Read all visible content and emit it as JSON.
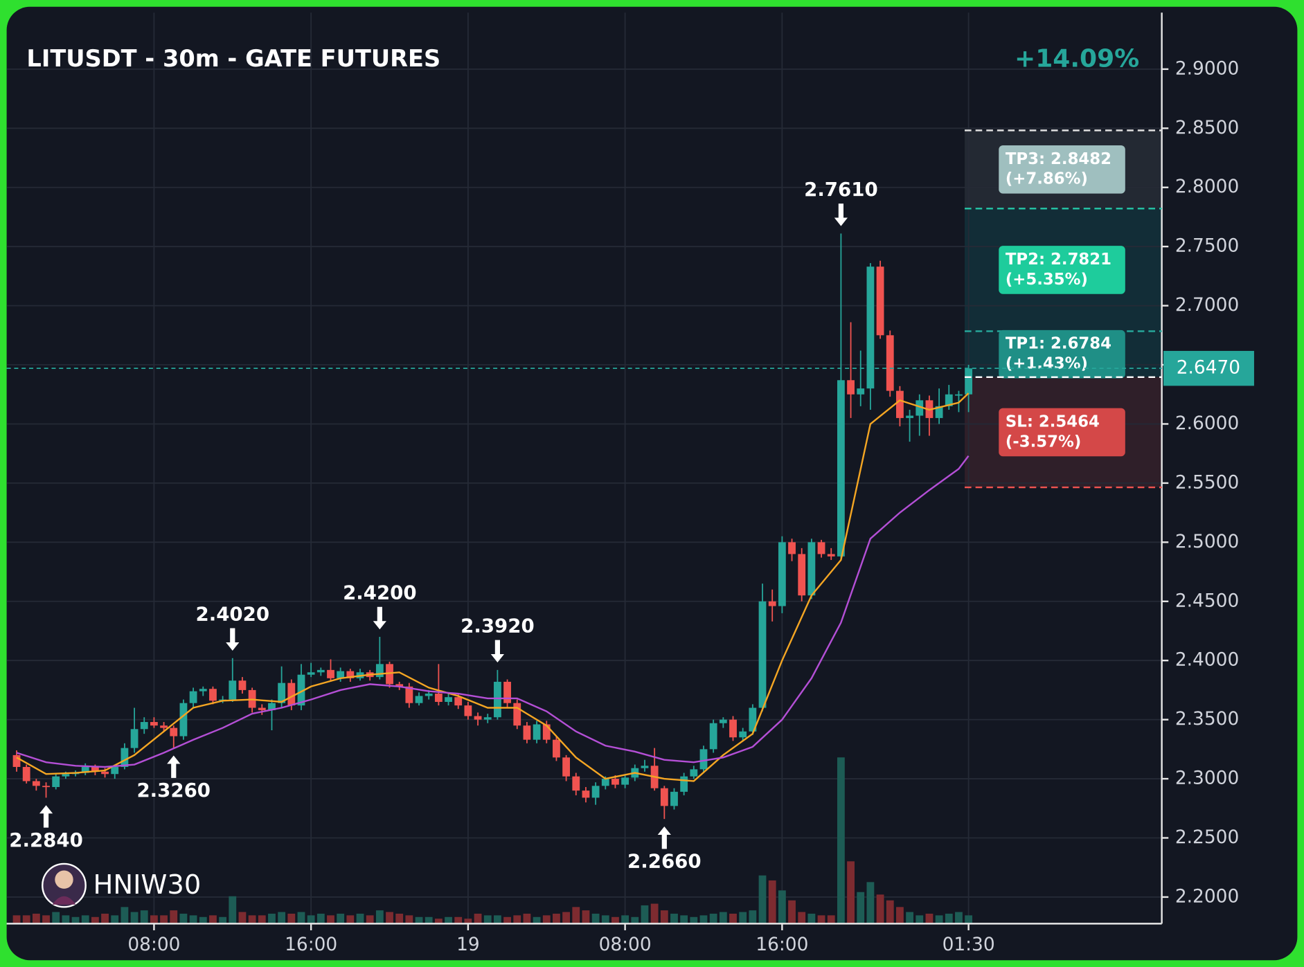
{
  "chart_data": {
    "type": "candlestick",
    "title": "LITUSDT - 30m - GATE FUTURES",
    "change": "+14.09%",
    "watermark": "HNIW30",
    "colors": {
      "up": "#26a69a",
      "down": "#f05350",
      "up_volume": "#1d5c55",
      "down_volume": "#7d2b30",
      "grid": "#252a36",
      "text": "#d1d4dc"
    },
    "grid": true,
    "xlim": [
      -1.017,
      116.69
    ],
    "xticks": [
      {
        "value": 14,
        "label": "08:00"
      },
      {
        "value": 30,
        "label": "16:00"
      },
      {
        "value": 46,
        "label": "19"
      },
      {
        "value": 62,
        "label": "08:00"
      },
      {
        "value": 78,
        "label": "16:00"
      },
      {
        "value": 97,
        "label": "01:30"
      }
    ],
    "ylim": [
      2.1775,
      2.9478
    ],
    "yticks": [
      {
        "value": 2.2,
        "label": "2.2000"
      },
      {
        "value": 2.25,
        "label": "2.2500"
      },
      {
        "value": 2.3,
        "label": "2.3000"
      },
      {
        "value": 2.35,
        "label": "2.3500"
      },
      {
        "value": 2.4,
        "label": "2.4000"
      },
      {
        "value": 2.45,
        "label": "2.4500"
      },
      {
        "value": 2.5,
        "label": "2.5000"
      },
      {
        "value": 2.55,
        "label": "2.5500"
      },
      {
        "value": 2.6,
        "label": "2.6000"
      },
      {
        "value": 2.65,
        "label": "2.6500"
      },
      {
        "value": 2.7,
        "label": "2.7000"
      },
      {
        "value": 2.75,
        "label": "2.7500"
      },
      {
        "value": 2.8,
        "label": "2.8000"
      },
      {
        "value": 2.85,
        "label": "2.8500"
      },
      {
        "value": 2.9,
        "label": "2.9000"
      }
    ],
    "candles": {
      "open": [
        2.32,
        2.31,
        2.298,
        2.294,
        2.293,
        2.302,
        2.304,
        2.305,
        2.31,
        2.306,
        2.304,
        2.31,
        2.326,
        2.342,
        2.348,
        2.345,
        2.343,
        2.336,
        2.364,
        2.374,
        2.376,
        2.366,
        2.367,
        2.383,
        2.375,
        2.36,
        2.358,
        2.364,
        2.381,
        2.362,
        2.388,
        2.39,
        2.392,
        2.385,
        2.391,
        2.385,
        2.39,
        2.386,
        2.397,
        2.38,
        2.378,
        2.364,
        2.37,
        2.372,
        2.365,
        2.369,
        2.362,
        2.353,
        2.35,
        2.352,
        2.382,
        2.364,
        2.345,
        2.333,
        2.346,
        2.333,
        2.318,
        2.302,
        2.29,
        2.284,
        2.294,
        2.3,
        2.295,
        2.301,
        2.309,
        2.311,
        2.292,
        2.277,
        2.289,
        2.302,
        2.308,
        2.325,
        2.347,
        2.35,
        2.335,
        2.34,
        2.36,
        2.45,
        2.446,
        2.5,
        2.49,
        2.455,
        2.5,
        2.49,
        2.488,
        2.637,
        2.625,
        2.63,
        2.733,
        2.675,
        2.628,
        2.605,
        2.607,
        2.62,
        2.605,
        2.615,
        2.625,
        2.625
      ],
      "high": [
        2.324,
        2.312,
        2.3,
        2.297,
        2.304,
        2.306,
        2.307,
        2.313,
        2.312,
        2.309,
        2.312,
        2.33,
        2.36,
        2.352,
        2.352,
        2.348,
        2.345,
        2.367,
        2.377,
        2.378,
        2.378,
        2.37,
        2.402,
        2.386,
        2.377,
        2.363,
        2.367,
        2.395,
        2.384,
        2.397,
        2.398,
        2.394,
        2.401,
        2.394,
        2.393,
        2.393,
        2.392,
        2.42,
        2.399,
        2.382,
        2.381,
        2.373,
        2.375,
        2.397,
        2.372,
        2.372,
        2.365,
        2.356,
        2.355,
        2.392,
        2.384,
        2.367,
        2.348,
        2.349,
        2.349,
        2.336,
        2.32,
        2.305,
        2.293,
        2.297,
        2.302,
        2.303,
        2.303,
        2.312,
        2.316,
        2.326,
        2.294,
        2.292,
        2.305,
        2.311,
        2.328,
        2.35,
        2.352,
        2.353,
        2.343,
        2.363,
        2.465,
        2.46,
        2.505,
        2.503,
        2.495,
        2.503,
        2.502,
        2.495,
        2.761,
        2.686,
        2.662,
        2.736,
        2.738,
        2.679,
        2.632,
        2.612,
        2.625,
        2.624,
        2.63,
        2.633,
        2.628,
        2.65
      ],
      "low": [
        2.306,
        2.296,
        2.29,
        2.284,
        2.291,
        2.3,
        2.302,
        2.303,
        2.303,
        2.301,
        2.3,
        2.308,
        2.322,
        2.338,
        2.343,
        2.34,
        2.326,
        2.333,
        2.36,
        2.37,
        2.363,
        2.364,
        2.365,
        2.372,
        2.356,
        2.354,
        2.341,
        2.36,
        2.358,
        2.358,
        2.386,
        2.387,
        2.382,
        2.382,
        2.382,
        2.383,
        2.383,
        2.384,
        2.377,
        2.375,
        2.36,
        2.362,
        2.367,
        2.362,
        2.362,
        2.359,
        2.35,
        2.345,
        2.347,
        2.35,
        2.36,
        2.342,
        2.33,
        2.33,
        2.33,
        2.315,
        2.298,
        2.286,
        2.28,
        2.278,
        2.291,
        2.292,
        2.292,
        2.298,
        2.306,
        2.29,
        2.266,
        2.274,
        2.286,
        2.3,
        2.305,
        2.322,
        2.343,
        2.332,
        2.332,
        2.337,
        2.357,
        2.433,
        2.44,
        2.484,
        2.45,
        2.452,
        2.487,
        2.485,
        2.486,
        2.605,
        2.615,
        2.612,
        2.672,
        2.623,
        2.598,
        2.585,
        2.59,
        2.59,
        2.6,
        2.612,
        2.61,
        2.61
      ],
      "close": [
        2.31,
        2.298,
        2.294,
        2.293,
        2.302,
        2.304,
        2.305,
        2.31,
        2.306,
        2.304,
        2.31,
        2.326,
        2.342,
        2.348,
        2.345,
        2.343,
        2.336,
        2.364,
        2.374,
        2.376,
        2.366,
        2.367,
        2.383,
        2.375,
        2.36,
        2.358,
        2.364,
        2.381,
        2.362,
        2.388,
        2.39,
        2.392,
        2.385,
        2.391,
        2.385,
        2.39,
        2.386,
        2.397,
        2.38,
        2.378,
        2.364,
        2.37,
        2.372,
        2.365,
        2.369,
        2.362,
        2.353,
        2.35,
        2.352,
        2.382,
        2.364,
        2.345,
        2.333,
        2.346,
        2.333,
        2.318,
        2.302,
        2.29,
        2.284,
        2.294,
        2.3,
        2.295,
        2.301,
        2.309,
        2.311,
        2.292,
        2.277,
        2.289,
        2.302,
        2.308,
        2.325,
        2.347,
        2.35,
        2.335,
        2.34,
        2.36,
        2.45,
        2.446,
        2.5,
        2.49,
        2.455,
        2.5,
        2.49,
        2.488,
        2.637,
        2.625,
        2.63,
        2.733,
        2.675,
        2.628,
        2.605,
        2.607,
        2.62,
        2.605,
        2.615,
        2.625,
        2.625,
        2.647
      ],
      "volume": [
        10,
        10,
        12,
        10,
        14,
        10,
        8,
        10,
        8,
        12,
        10,
        20,
        14,
        16,
        10,
        10,
        16,
        12,
        10,
        8,
        10,
        8,
        33,
        14,
        10,
        10,
        12,
        14,
        12,
        14,
        10,
        12,
        10,
        12,
        10,
        12,
        10,
        16,
        14,
        12,
        10,
        8,
        8,
        6,
        8,
        8,
        6,
        12,
        10,
        10,
        8,
        10,
        12,
        8,
        10,
        12,
        14,
        20,
        16,
        12,
        10,
        8,
        10,
        8,
        22,
        24,
        16,
        12,
        10,
        8,
        10,
        12,
        14,
        12,
        14,
        16,
        58,
        52,
        40,
        28,
        14,
        12,
        10,
        10,
        200,
        75,
        38,
        50,
        35,
        28,
        20,
        14,
        10,
        12,
        10,
        12,
        14,
        10
      ]
    },
    "volume_lim": [
      0,
      250
    ],
    "moving_averages": [
      {
        "color": "#f5a623",
        "x": [
          0,
          3,
          6,
          9,
          12,
          15,
          18,
          21,
          24,
          27,
          30,
          33,
          36,
          39,
          42,
          45,
          48,
          51,
          54,
          57,
          60,
          63,
          66,
          69,
          72,
          75,
          78,
          81,
          84,
          87,
          90,
          93,
          96,
          97
        ],
        "values": [
          2.318,
          2.304,
          2.305,
          2.307,
          2.32,
          2.34,
          2.36,
          2.366,
          2.367,
          2.365,
          2.378,
          2.385,
          2.388,
          2.39,
          2.377,
          2.37,
          2.36,
          2.36,
          2.345,
          2.318,
          2.3,
          2.305,
          2.3,
          2.298,
          2.32,
          2.338,
          2.4,
          2.455,
          2.485,
          2.6,
          2.62,
          2.612,
          2.618,
          2.626
        ]
      },
      {
        "color": "#b44fd6",
        "x": [
          0,
          3,
          6,
          9,
          12,
          15,
          18,
          21,
          24,
          27,
          30,
          33,
          36,
          39,
          42,
          45,
          48,
          51,
          54,
          57,
          60,
          63,
          66,
          69,
          72,
          75,
          78,
          81,
          84,
          87,
          90,
          93,
          96,
          97
        ],
        "values": [
          2.322,
          2.314,
          2.311,
          2.31,
          2.312,
          2.322,
          2.333,
          2.343,
          2.355,
          2.36,
          2.367,
          2.375,
          2.38,
          2.378,
          2.374,
          2.372,
          2.368,
          2.368,
          2.357,
          2.34,
          2.328,
          2.323,
          2.316,
          2.314,
          2.318,
          2.327,
          2.35,
          2.385,
          2.432,
          2.503,
          2.525,
          2.544,
          2.562,
          2.573
        ]
      }
    ],
    "annotations": [
      {
        "x": 3,
        "value": 2.284,
        "label": "2.2840",
        "direction": "up"
      },
      {
        "x": 16,
        "value": 2.326,
        "label": "2.3260",
        "direction": "up"
      },
      {
        "x": 22,
        "value": 2.402,
        "label": "2.4020",
        "direction": "down"
      },
      {
        "x": 37,
        "value": 2.42,
        "label": "2.4200",
        "direction": "down"
      },
      {
        "x": 49,
        "value": 2.392,
        "label": "2.3920",
        "direction": "down"
      },
      {
        "x": 66,
        "value": 2.266,
        "label": "2.2660",
        "direction": "up"
      },
      {
        "x": 84,
        "value": 2.761,
        "label": "2.7610",
        "direction": "down"
      }
    ],
    "last_price": {
      "value": 2.647,
      "label": "2.6470",
      "color": "#26a69a"
    },
    "entry": 2.6396,
    "levels": [
      {
        "value": 2.8482,
        "label": "TP3: 2.8482",
        "change": "(+7.86%)",
        "line_color": "#e0e0e0",
        "box_color": "#9fbfbf",
        "zone_color": "#262b35"
      },
      {
        "value": 2.7821,
        "label": "TP2: 2.7821",
        "change": "(+5.35%)",
        "line_color": "#26c6a6",
        "box_color": "#1ecc9c",
        "zone_color": "#13303a"
      },
      {
        "value": 2.6784,
        "label": "TP1: 2.6784",
        "change": "(+1.43%)",
        "line_color": "#26a69a",
        "box_color": "#1f8f86",
        "zone_color": "#13303a"
      },
      {
        "value": 2.5464,
        "label": "SL: 2.5464",
        "change": "(-3.57%)",
        "line_color": "#f05350",
        "box_color": "#d44848",
        "zone_color": "#33202a"
      }
    ]
  }
}
